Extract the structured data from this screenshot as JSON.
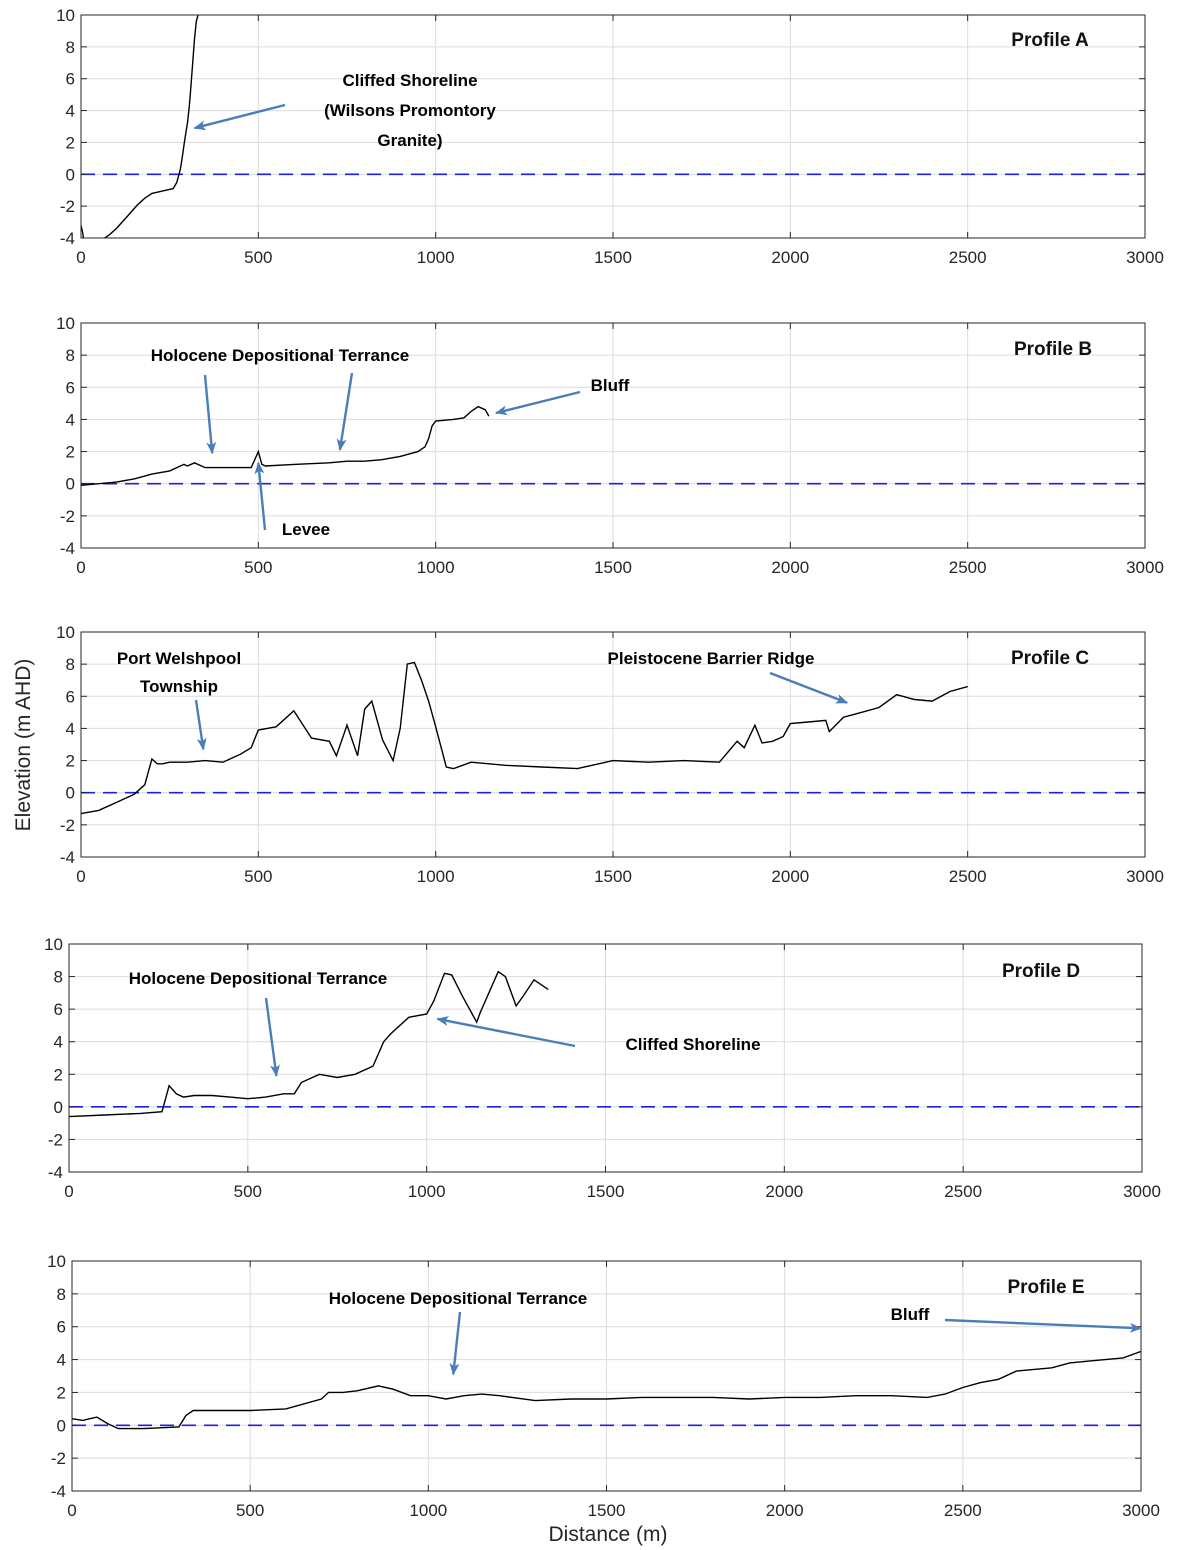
{
  "figure": {
    "ylabel": "Elevation (m AHD)",
    "xlabel": "Distance (m)",
    "colors": {
      "profile_line": "#000000",
      "datum_line": "#1f1fe0",
      "arrow": "#4a7ebb",
      "grid": "#dcdcdc",
      "axes": "#262626"
    }
  },
  "chart_data": [
    {
      "type": "line",
      "title": "Profile A",
      "xlim": [
        0,
        3000
      ],
      "ylim": [
        -4,
        10
      ],
      "grid": true,
      "xticks": [
        0,
        500,
        1000,
        1500,
        2000,
        2500,
        3000
      ],
      "yticks": [
        -4,
        -2,
        0,
        2,
        4,
        6,
        8,
        10
      ],
      "datum": 0,
      "x": [
        0,
        5,
        10,
        20,
        40,
        60,
        80,
        100,
        120,
        140,
        160,
        180,
        200,
        220,
        240,
        260,
        270,
        280,
        285,
        290,
        295,
        300,
        305,
        310,
        315,
        320,
        325,
        330
      ],
      "y": [
        -3.2,
        -3.7,
        -4.6,
        -4.5,
        -4.3,
        -4.1,
        -3.8,
        -3.4,
        -2.9,
        -2.4,
        -1.9,
        -1.5,
        -1.2,
        -1.1,
        -1.0,
        -0.9,
        -0.5,
        0.3,
        1.0,
        1.8,
        2.5,
        3.2,
        4.2,
        5.5,
        7.0,
        8.5,
        9.6,
        10.0
      ],
      "annotations": [
        {
          "lines": [
            "Cliffed Shoreline",
            "(Wilsons Promontory",
            "Granite)"
          ],
          "target": [
            320,
            2.9
          ]
        }
      ]
    },
    {
      "type": "line",
      "title": "Profile B",
      "xlim": [
        0,
        3000
      ],
      "ylim": [
        -4,
        10
      ],
      "grid": true,
      "xticks": [
        0,
        500,
        1000,
        1500,
        2000,
        2500,
        3000
      ],
      "yticks": [
        -4,
        -2,
        0,
        2,
        4,
        6,
        8,
        10
      ],
      "datum": 0,
      "x": [
        0,
        50,
        100,
        150,
        200,
        250,
        290,
        300,
        320,
        350,
        380,
        400,
        450,
        480,
        490,
        500,
        510,
        520,
        600,
        700,
        750,
        800,
        850,
        900,
        950,
        970,
        980,
        990,
        1000,
        1050,
        1080,
        1100,
        1120,
        1140,
        1150
      ],
      "y": [
        -0.1,
        0.0,
        0.1,
        0.3,
        0.6,
        0.8,
        1.2,
        1.1,
        1.3,
        1.0,
        1.0,
        1.0,
        1.0,
        1.0,
        1.5,
        2.0,
        1.2,
        1.1,
        1.2,
        1.3,
        1.4,
        1.4,
        1.5,
        1.7,
        2.0,
        2.3,
        2.8,
        3.6,
        3.9,
        4.0,
        4.1,
        4.5,
        4.8,
        4.6,
        4.2
      ],
      "annotations": [
        {
          "lines": [
            "Holocene Depositional Terrance"
          ],
          "targets": [
            [
              370,
              1.9
            ],
            [
              730,
              2.1
            ]
          ]
        },
        {
          "lines": [
            "Bluff"
          ],
          "target": [
            1170,
            4.4
          ]
        },
        {
          "lines": [
            "Levee"
          ],
          "target": [
            500,
            1.3
          ]
        }
      ]
    },
    {
      "type": "line",
      "title": "Profile C",
      "xlim": [
        0,
        3000
      ],
      "ylim": [
        -4,
        10
      ],
      "grid": true,
      "xticks": [
        0,
        500,
        1000,
        1500,
        2000,
        2500,
        3000
      ],
      "yticks": [
        -4,
        -2,
        0,
        2,
        4,
        6,
        8,
        10
      ],
      "datum": 0,
      "x": [
        0,
        50,
        100,
        150,
        180,
        200,
        215,
        230,
        250,
        300,
        350,
        400,
        450,
        480,
        500,
        550,
        600,
        650,
        700,
        720,
        750,
        780,
        800,
        820,
        850,
        880,
        900,
        920,
        940,
        960,
        980,
        1000,
        1030,
        1050,
        1100,
        1200,
        1300,
        1400,
        1500,
        1600,
        1700,
        1800,
        1850,
        1870,
        1900,
        1920,
        1950,
        1980,
        2000,
        2050,
        2100,
        2110,
        2150,
        2200,
        2250,
        2300,
        2350,
        2400,
        2450,
        2500
      ],
      "y": [
        -1.3,
        -1.1,
        -0.6,
        -0.1,
        0.5,
        2.1,
        1.8,
        1.8,
        1.9,
        1.9,
        2.0,
        1.9,
        2.4,
        2.8,
        3.9,
        4.1,
        5.1,
        3.4,
        3.2,
        2.3,
        4.2,
        2.3,
        5.2,
        5.7,
        3.3,
        2.0,
        4.0,
        8.0,
        8.1,
        7.0,
        5.7,
        4.1,
        1.6,
        1.5,
        1.9,
        1.7,
        1.6,
        1.5,
        2.0,
        1.9,
        2.0,
        1.9,
        3.2,
        2.8,
        4.2,
        3.1,
        3.2,
        3.5,
        4.3,
        4.4,
        4.5,
        3.8,
        4.7,
        5.0,
        5.3,
        6.1,
        5.8,
        5.7,
        6.3,
        6.6
      ],
      "annotations": [
        {
          "lines": [
            "Port Welshpool",
            "Township"
          ],
          "target": [
            345,
            2.7
          ]
        },
        {
          "lines": [
            "Pleistocene Barrier Ridge"
          ],
          "target": [
            2160,
            5.6
          ]
        }
      ]
    },
    {
      "type": "line",
      "title": "Profile D",
      "xlim": [
        0,
        3000
      ],
      "ylim": [
        -4,
        10
      ],
      "grid": true,
      "xticks": [
        0,
        500,
        1000,
        1500,
        2000,
        2500,
        3000
      ],
      "yticks": [
        -4,
        -2,
        0,
        2,
        4,
        6,
        8,
        10
      ],
      "datum": 0,
      "x": [
        0,
        100,
        200,
        260,
        270,
        280,
        300,
        320,
        350,
        400,
        450,
        500,
        550,
        600,
        630,
        650,
        700,
        750,
        800,
        850,
        880,
        900,
        950,
        1000,
        1020,
        1050,
        1070,
        1100,
        1140,
        1150,
        1200,
        1220,
        1250,
        1270,
        1300,
        1340
      ],
      "y": [
        -0.6,
        -0.5,
        -0.4,
        -0.3,
        0.5,
        1.3,
        0.8,
        0.6,
        0.7,
        0.7,
        0.6,
        0.5,
        0.6,
        0.8,
        0.8,
        1.5,
        2.0,
        1.8,
        2.0,
        2.5,
        4.0,
        4.5,
        5.5,
        5.7,
        6.5,
        8.2,
        8.1,
        6.8,
        5.2,
        5.8,
        8.3,
        8.0,
        6.2,
        6.8,
        7.8,
        7.2
      ],
      "annotations": [
        {
          "lines": [
            "Holocene Depositional Terrance"
          ],
          "target": [
            580,
            1.9
          ]
        },
        {
          "lines": [
            "Cliffed Shoreline"
          ],
          "target": [
            1030,
            5.4
          ]
        }
      ]
    },
    {
      "type": "line",
      "title": "Profile E",
      "xlim": [
        0,
        3000
      ],
      "ylim": [
        -4,
        10
      ],
      "grid": true,
      "xticks": [
        0,
        500,
        1000,
        1500,
        2000,
        2500,
        3000
      ],
      "yticks": [
        -4,
        -2,
        0,
        2,
        4,
        6,
        8,
        10
      ],
      "datum": 0,
      "x": [
        0,
        30,
        70,
        100,
        130,
        200,
        300,
        320,
        340,
        400,
        500,
        600,
        700,
        720,
        760,
        800,
        860,
        900,
        950,
        1000,
        1050,
        1100,
        1150,
        1200,
        1300,
        1400,
        1500,
        1600,
        1700,
        1800,
        1900,
        2000,
        2100,
        2200,
        2300,
        2400,
        2450,
        2500,
        2550,
        2600,
        2650,
        2700,
        2750,
        2800,
        2850,
        2900,
        2950,
        3000
      ],
      "y": [
        0.4,
        0.3,
        0.5,
        0.1,
        -0.2,
        -0.2,
        -0.1,
        0.6,
        0.9,
        0.9,
        0.9,
        1.0,
        1.6,
        2.0,
        2.0,
        2.1,
        2.4,
        2.2,
        1.8,
        1.8,
        1.6,
        1.8,
        1.9,
        1.8,
        1.5,
        1.6,
        1.6,
        1.7,
        1.7,
        1.7,
        1.6,
        1.7,
        1.7,
        1.8,
        1.8,
        1.7,
        1.9,
        2.3,
        2.6,
        2.8,
        3.3,
        3.4,
        3.5,
        3.8,
        3.9,
        4.0,
        4.1,
        4.5
      ],
      "annotations": [
        {
          "lines": [
            "Holocene Depositional Terrance"
          ],
          "target": [
            1070,
            3.1
          ]
        },
        {
          "lines": [
            "Bluff"
          ],
          "target": [
            3000,
            5.9
          ]
        }
      ]
    }
  ]
}
